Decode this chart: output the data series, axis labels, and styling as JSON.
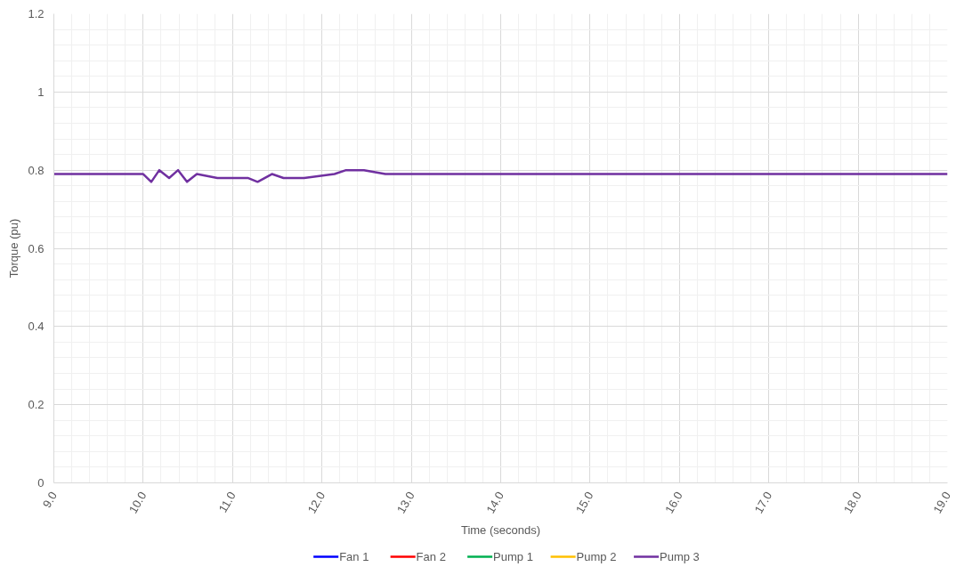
{
  "chart_data": {
    "type": "line",
    "xlabel": "Time (seconds)",
    "ylabel": "Torque (pu)",
    "x": [
      9.0,
      10.0,
      10.09,
      10.18,
      10.29,
      10.39,
      10.49,
      10.6,
      10.83,
      10.97,
      11.17,
      11.28,
      11.44,
      11.57,
      11.8,
      12.14,
      12.27,
      12.47,
      12.71,
      13.19,
      13.43,
      13.64,
      14.38,
      14.42,
      19.0
    ],
    "series": [
      {
        "name": "Fan 1",
        "color": "#0000ff",
        "values": [
          null,
          null,
          null,
          null,
          null,
          null,
          null,
          null,
          null,
          null,
          null,
          null,
          null,
          null,
          null,
          null,
          null,
          null,
          null,
          null,
          null,
          null,
          null,
          null,
          null
        ]
      },
      {
        "name": "Fan 2",
        "color": "#ff0000",
        "values": [
          null,
          null,
          null,
          null,
          null,
          null,
          null,
          null,
          null,
          null,
          null,
          null,
          null,
          null,
          null,
          null,
          null,
          null,
          null,
          null,
          null,
          null,
          null,
          null,
          null
        ]
      },
      {
        "name": "Pump 1",
        "color": "#00b050",
        "values": [
          null,
          null,
          null,
          null,
          null,
          null,
          null,
          null,
          null,
          null,
          null,
          null,
          null,
          null,
          null,
          null,
          null,
          null,
          null,
          null,
          null,
          null,
          null,
          null,
          null
        ]
      },
      {
        "name": "Pump 2",
        "color": "#ffc000",
        "values": [
          null,
          null,
          null,
          null,
          null,
          null,
          null,
          null,
          null,
          null,
          null,
          null,
          null,
          null,
          null,
          null,
          null,
          null,
          null,
          null,
          null,
          null,
          null,
          null,
          null
        ]
      },
      {
        "name": "Pump 3",
        "color": "#7030a0",
        "values": [
          0.79,
          0.79,
          0.77,
          0.8,
          0.78,
          0.8,
          0.77,
          0.79,
          0.78,
          0.78,
          0.78,
          0.77,
          0.79,
          0.78,
          0.78,
          0.79,
          0.8,
          0.8,
          0.79,
          0.79,
          0.79,
          0.79,
          0.79,
          0.79,
          0.79
        ]
      }
    ],
    "xlim": [
      9.0,
      19.0
    ],
    "ylim": [
      0,
      1.2
    ],
    "xticks": [
      {
        "value": 9,
        "label": "9.0"
      },
      {
        "value": 10,
        "label": "10.0"
      },
      {
        "value": 11,
        "label": "11.0"
      },
      {
        "value": 12,
        "label": "12.0"
      },
      {
        "value": 13,
        "label": "13.0"
      },
      {
        "value": 14,
        "label": "14.0"
      },
      {
        "value": 15,
        "label": "15.0"
      },
      {
        "value": 16,
        "label": "16.0"
      },
      {
        "value": 17,
        "label": "17.0"
      },
      {
        "value": 18,
        "label": "18.0"
      },
      {
        "value": 19,
        "label": "19.0"
      }
    ],
    "yticks": [
      0,
      0.2,
      0.4,
      0.6,
      0.8,
      1,
      1.2
    ],
    "grid": true,
    "legend": "bottom",
    "marker": "none",
    "line_style": "solid"
  }
}
